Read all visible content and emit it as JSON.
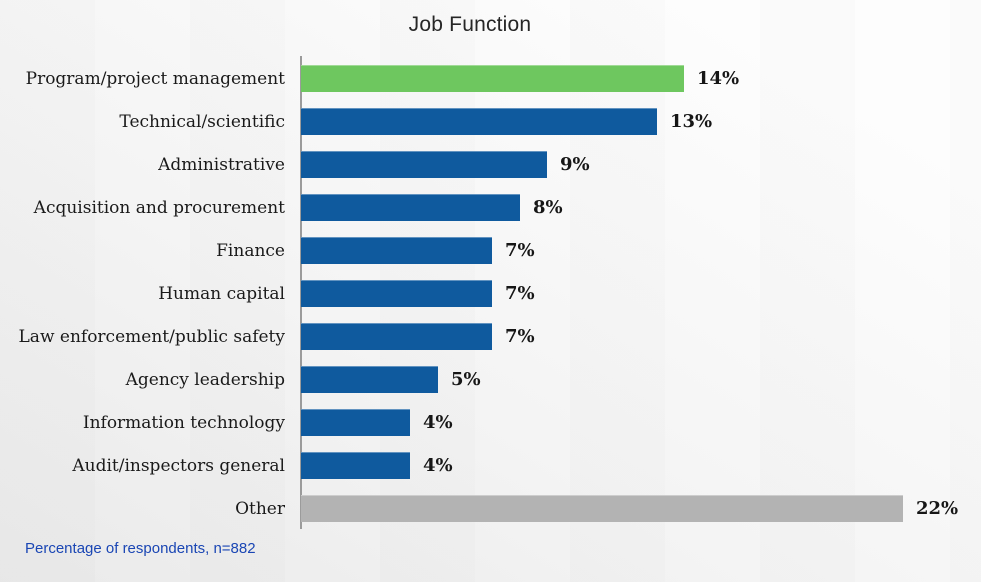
{
  "chart_data": {
    "type": "bar",
    "orientation": "horizontal",
    "title": "Job Function",
    "categories": [
      "Program/project management",
      "Technical/scientific",
      "Administrative",
      "Acquisition and procurement",
      "Finance",
      "Human capital",
      "Law enforcement/public safety",
      "Agency leadership",
      "Information technology",
      "Audit/inspectors general",
      "Other"
    ],
    "values": [
      14,
      13,
      9,
      8,
      7,
      7,
      7,
      5,
      4,
      4,
      22
    ],
    "value_labels": [
      "14%",
      "13%",
      "9%",
      "8%",
      "7%",
      "7%",
      "7%",
      "5%",
      "4%",
      "4%",
      "22%"
    ],
    "unit": "%",
    "xlim": [
      0,
      22
    ],
    "grid": false,
    "legend": "none",
    "note": "Percentage of respondents, n=882",
    "bar_colors": [
      "#6ec75f",
      "#0f5a9e",
      "#0f5a9e",
      "#0f5a9e",
      "#0f5a9e",
      "#0f5a9e",
      "#0f5a9e",
      "#0f5a9e",
      "#0f5a9e",
      "#0f5a9e",
      "#b3b3b3"
    ],
    "colors": {
      "highlight_green": "#6ec75f",
      "default_blue": "#0f5a9e",
      "other_gray": "#b3b3b3",
      "axis_gray": "#9b9b9b",
      "note_blue": "#1a46b4"
    }
  }
}
